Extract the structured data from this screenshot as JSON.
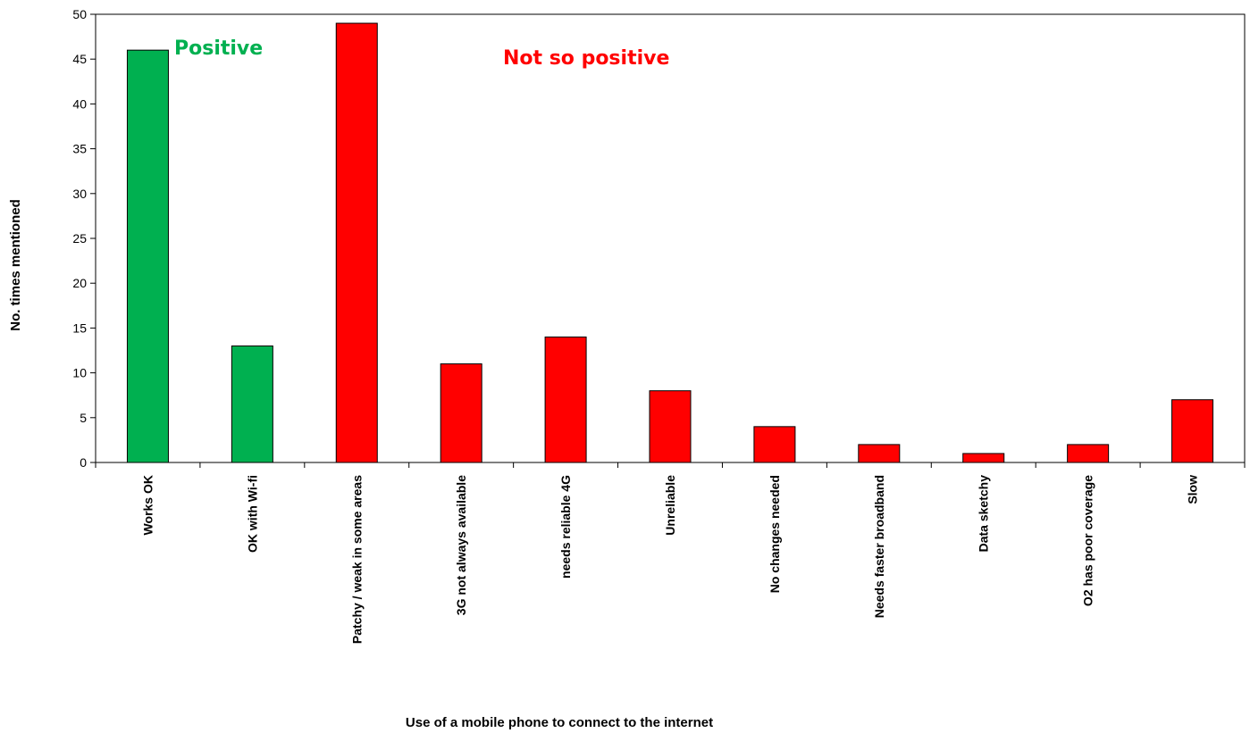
{
  "chart_data": {
    "type": "bar",
    "title": "",
    "xlabel": "Use of a mobile phone to connect to the internet",
    "ylabel": "No. times mentioned",
    "ylim": [
      0,
      50
    ],
    "yticks": [
      0,
      5,
      10,
      15,
      20,
      25,
      30,
      35,
      40,
      45,
      50
    ],
    "grid": false,
    "legend": "none",
    "categories": [
      "Works OK",
      "OK with Wi-fi",
      "Patchy / weak in some areas",
      "3G not always available",
      "needs reliable 4G",
      "Unreliable",
      "No changes needed",
      "Needs faster broadband",
      "Data sketchy",
      "O2 has poor coverage",
      "Slow"
    ],
    "values": [
      46,
      13,
      49,
      11,
      14,
      8,
      4,
      2,
      1,
      2,
      7
    ],
    "bar_colors": [
      "#00b050",
      "#00b050",
      "#ff0000",
      "#ff0000",
      "#ff0000",
      "#ff0000",
      "#ff0000",
      "#ff0000",
      "#ff0000",
      "#ff0000",
      "#ff0000"
    ],
    "annotations": [
      {
        "text": "Positive",
        "color": "#00b050"
      },
      {
        "text": "Not so positive",
        "color": "#ff0000"
      }
    ]
  }
}
